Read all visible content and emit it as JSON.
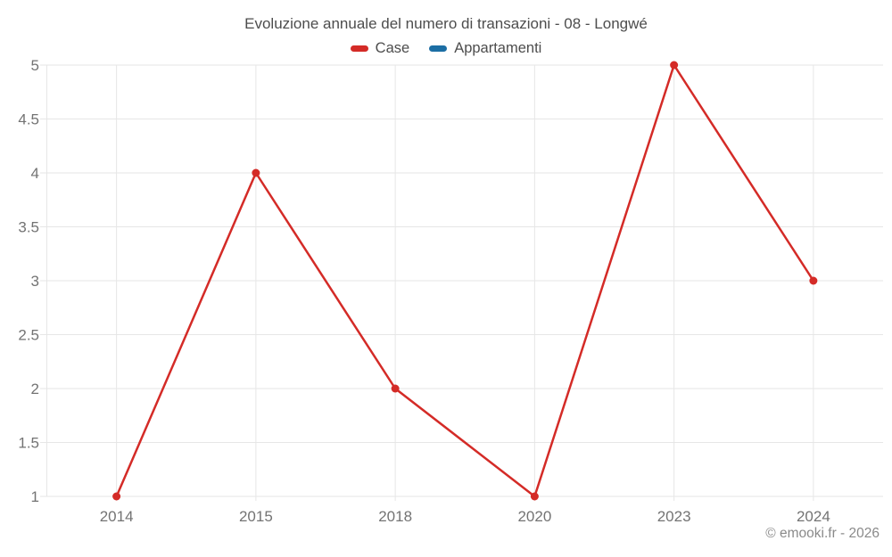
{
  "title": "Evoluzione annuale del numero di transazioni - 08 - Longwé",
  "legend": {
    "items": [
      {
        "label": "Case"
      },
      {
        "label": "Appartamenti"
      }
    ]
  },
  "footer": "© emooki.fr - 2026",
  "colors": {
    "case_red": "#d42b27",
    "appartamenti_blue": "#1c6ea4",
    "grid": "#e6e6e6",
    "axis_text": "#737373",
    "title_text": "#4d4d4d",
    "footer_text": "#8a8a8a"
  },
  "chart_data": {
    "type": "line",
    "categories": [
      "2014",
      "2015",
      "2018",
      "2020",
      "2023",
      "2024"
    ],
    "series": [
      {
        "name": "Case",
        "color": "#d42b27",
        "values": [
          1,
          4,
          2,
          1,
          5,
          3
        ]
      },
      {
        "name": "Appartamenti",
        "color": "#1c6ea4",
        "values": []
      }
    ],
    "title": "Evoluzione annuale del numero di transazioni - 08 - Longwé",
    "xlabel": "",
    "ylabel": "",
    "ylim": [
      1,
      5
    ],
    "ytick_step": 0.5,
    "grid": true,
    "legend_position": "top",
    "markers": true
  }
}
